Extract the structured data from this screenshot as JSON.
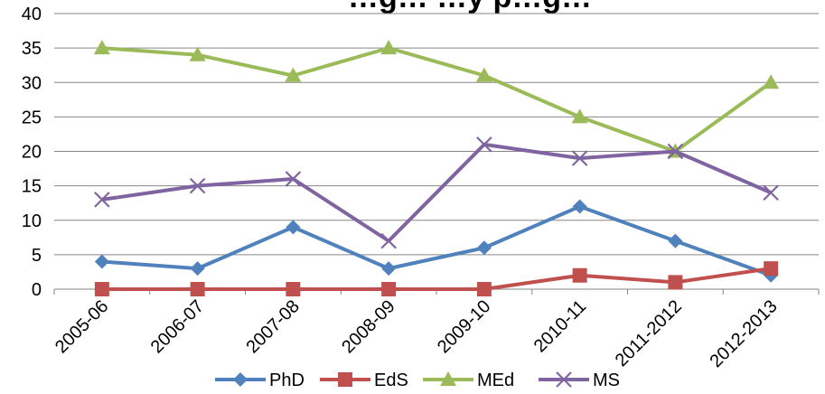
{
  "chart_data": {
    "type": "line",
    "title": "…g… …y p…g…",
    "xlabel": "",
    "ylabel": "",
    "ylim": [
      0,
      40
    ],
    "yticks": [
      "0",
      "5",
      "10",
      "15",
      "20",
      "25",
      "30",
      "35",
      "40"
    ],
    "grid": "horizontal",
    "legend_placement": "bottom",
    "categories": [
      "2005-06",
      "2006-07",
      "2007-08",
      "2008-09",
      "2009-10",
      "2010-11",
      "2011-2012",
      "2012-2013"
    ],
    "series": [
      {
        "name": "PhD",
        "color": "#4f81bd",
        "marker": "diamond",
        "values": [
          4,
          3,
          9,
          3,
          6,
          12,
          7,
          2
        ]
      },
      {
        "name": "EdS",
        "color": "#c0504d",
        "marker": "square",
        "values": [
          0,
          0,
          0,
          0,
          0,
          2,
          1,
          3
        ]
      },
      {
        "name": "MEd",
        "color": "#9bbb59",
        "marker": "triangle",
        "values": [
          35,
          34,
          31,
          35,
          31,
          25,
          20,
          30
        ]
      },
      {
        "name": "MS",
        "color": "#8064a2",
        "marker": "x",
        "values": [
          13,
          15,
          16,
          7,
          21,
          19,
          20,
          14
        ]
      }
    ]
  }
}
